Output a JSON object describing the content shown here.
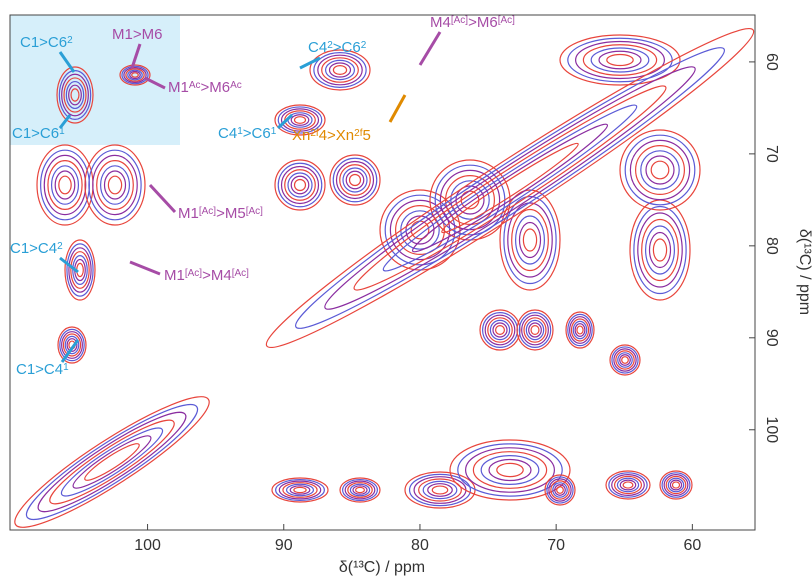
{
  "chart_data": {
    "type": "contour",
    "xlabel": "δ(¹³C) / ppm",
    "ylabel": "δ(¹³C) / ppm",
    "xlim": [
      110.1,
      55.4
    ],
    "xticks": [
      100,
      90,
      80,
      70,
      60
    ],
    "ylim": [
      54.9,
      110.9
    ],
    "yticks": [
      60,
      70,
      80,
      90,
      100
    ],
    "colors": [
      "#e8453c",
      "#5b5bd6",
      "#8a2da0"
    ],
    "annotations": [
      {
        "color": "#2a9fd6",
        "segments": [
          {
            "t": "C1>C6"
          },
          {
            "sup": "2"
          }
        ]
      },
      {
        "color": "#a64ca6",
        "segments": [
          {
            "t": "M1>M6"
          }
        ]
      },
      {
        "color": "#a64ca6",
        "segments": [
          {
            "t": "M1"
          },
          {
            "sup": "Ac"
          },
          {
            "t": ">M6"
          },
          {
            "sup": "Ac"
          }
        ]
      },
      {
        "color": "#2a9fd6",
        "segments": [
          {
            "t": "C1>C6"
          },
          {
            "sup": "1"
          }
        ]
      },
      {
        "color": "#2a9fd6",
        "segments": [
          {
            "t": "C4"
          },
          {
            "sup": "1"
          },
          {
            "t": ">C6"
          },
          {
            "sup": "1"
          }
        ]
      },
      {
        "color": "#2a9fd6",
        "segments": [
          {
            "t": "C4"
          },
          {
            "sup": "2"
          },
          {
            "t": ">C6"
          },
          {
            "sup": "2"
          }
        ]
      },
      {
        "color": "#a64ca6",
        "segments": [
          {
            "t": "M4"
          },
          {
            "sup": "[Ac]"
          },
          {
            "t": ">M6"
          },
          {
            "sup": "[Ac]"
          }
        ]
      },
      {
        "color": "#e08a00",
        "segments": [
          {
            "t": "Xn"
          },
          {
            "sup": "2f"
          },
          {
            "t": "4>Xn"
          },
          {
            "sup": "2f"
          },
          {
            "t": "5"
          }
        ]
      },
      {
        "color": "#a64ca6",
        "segments": [
          {
            "t": "M1"
          },
          {
            "sup": "[Ac]"
          },
          {
            "t": ">M5"
          },
          {
            "sup": "[Ac]"
          }
        ]
      },
      {
        "color": "#2a9fd6",
        "segments": [
          {
            "t": "C1>C4"
          },
          {
            "sup": "2"
          }
        ]
      },
      {
        "color": "#a64ca6",
        "segments": [
          {
            "t": "M1"
          },
          {
            "sup": "[Ac]"
          },
          {
            "t": ">M4"
          },
          {
            "sup": "[Ac]"
          }
        ]
      },
      {
        "color": "#2a9fd6",
        "segments": [
          {
            "t": "C1>C4"
          },
          {
            "sup": "1"
          }
        ]
      }
    ]
  }
}
